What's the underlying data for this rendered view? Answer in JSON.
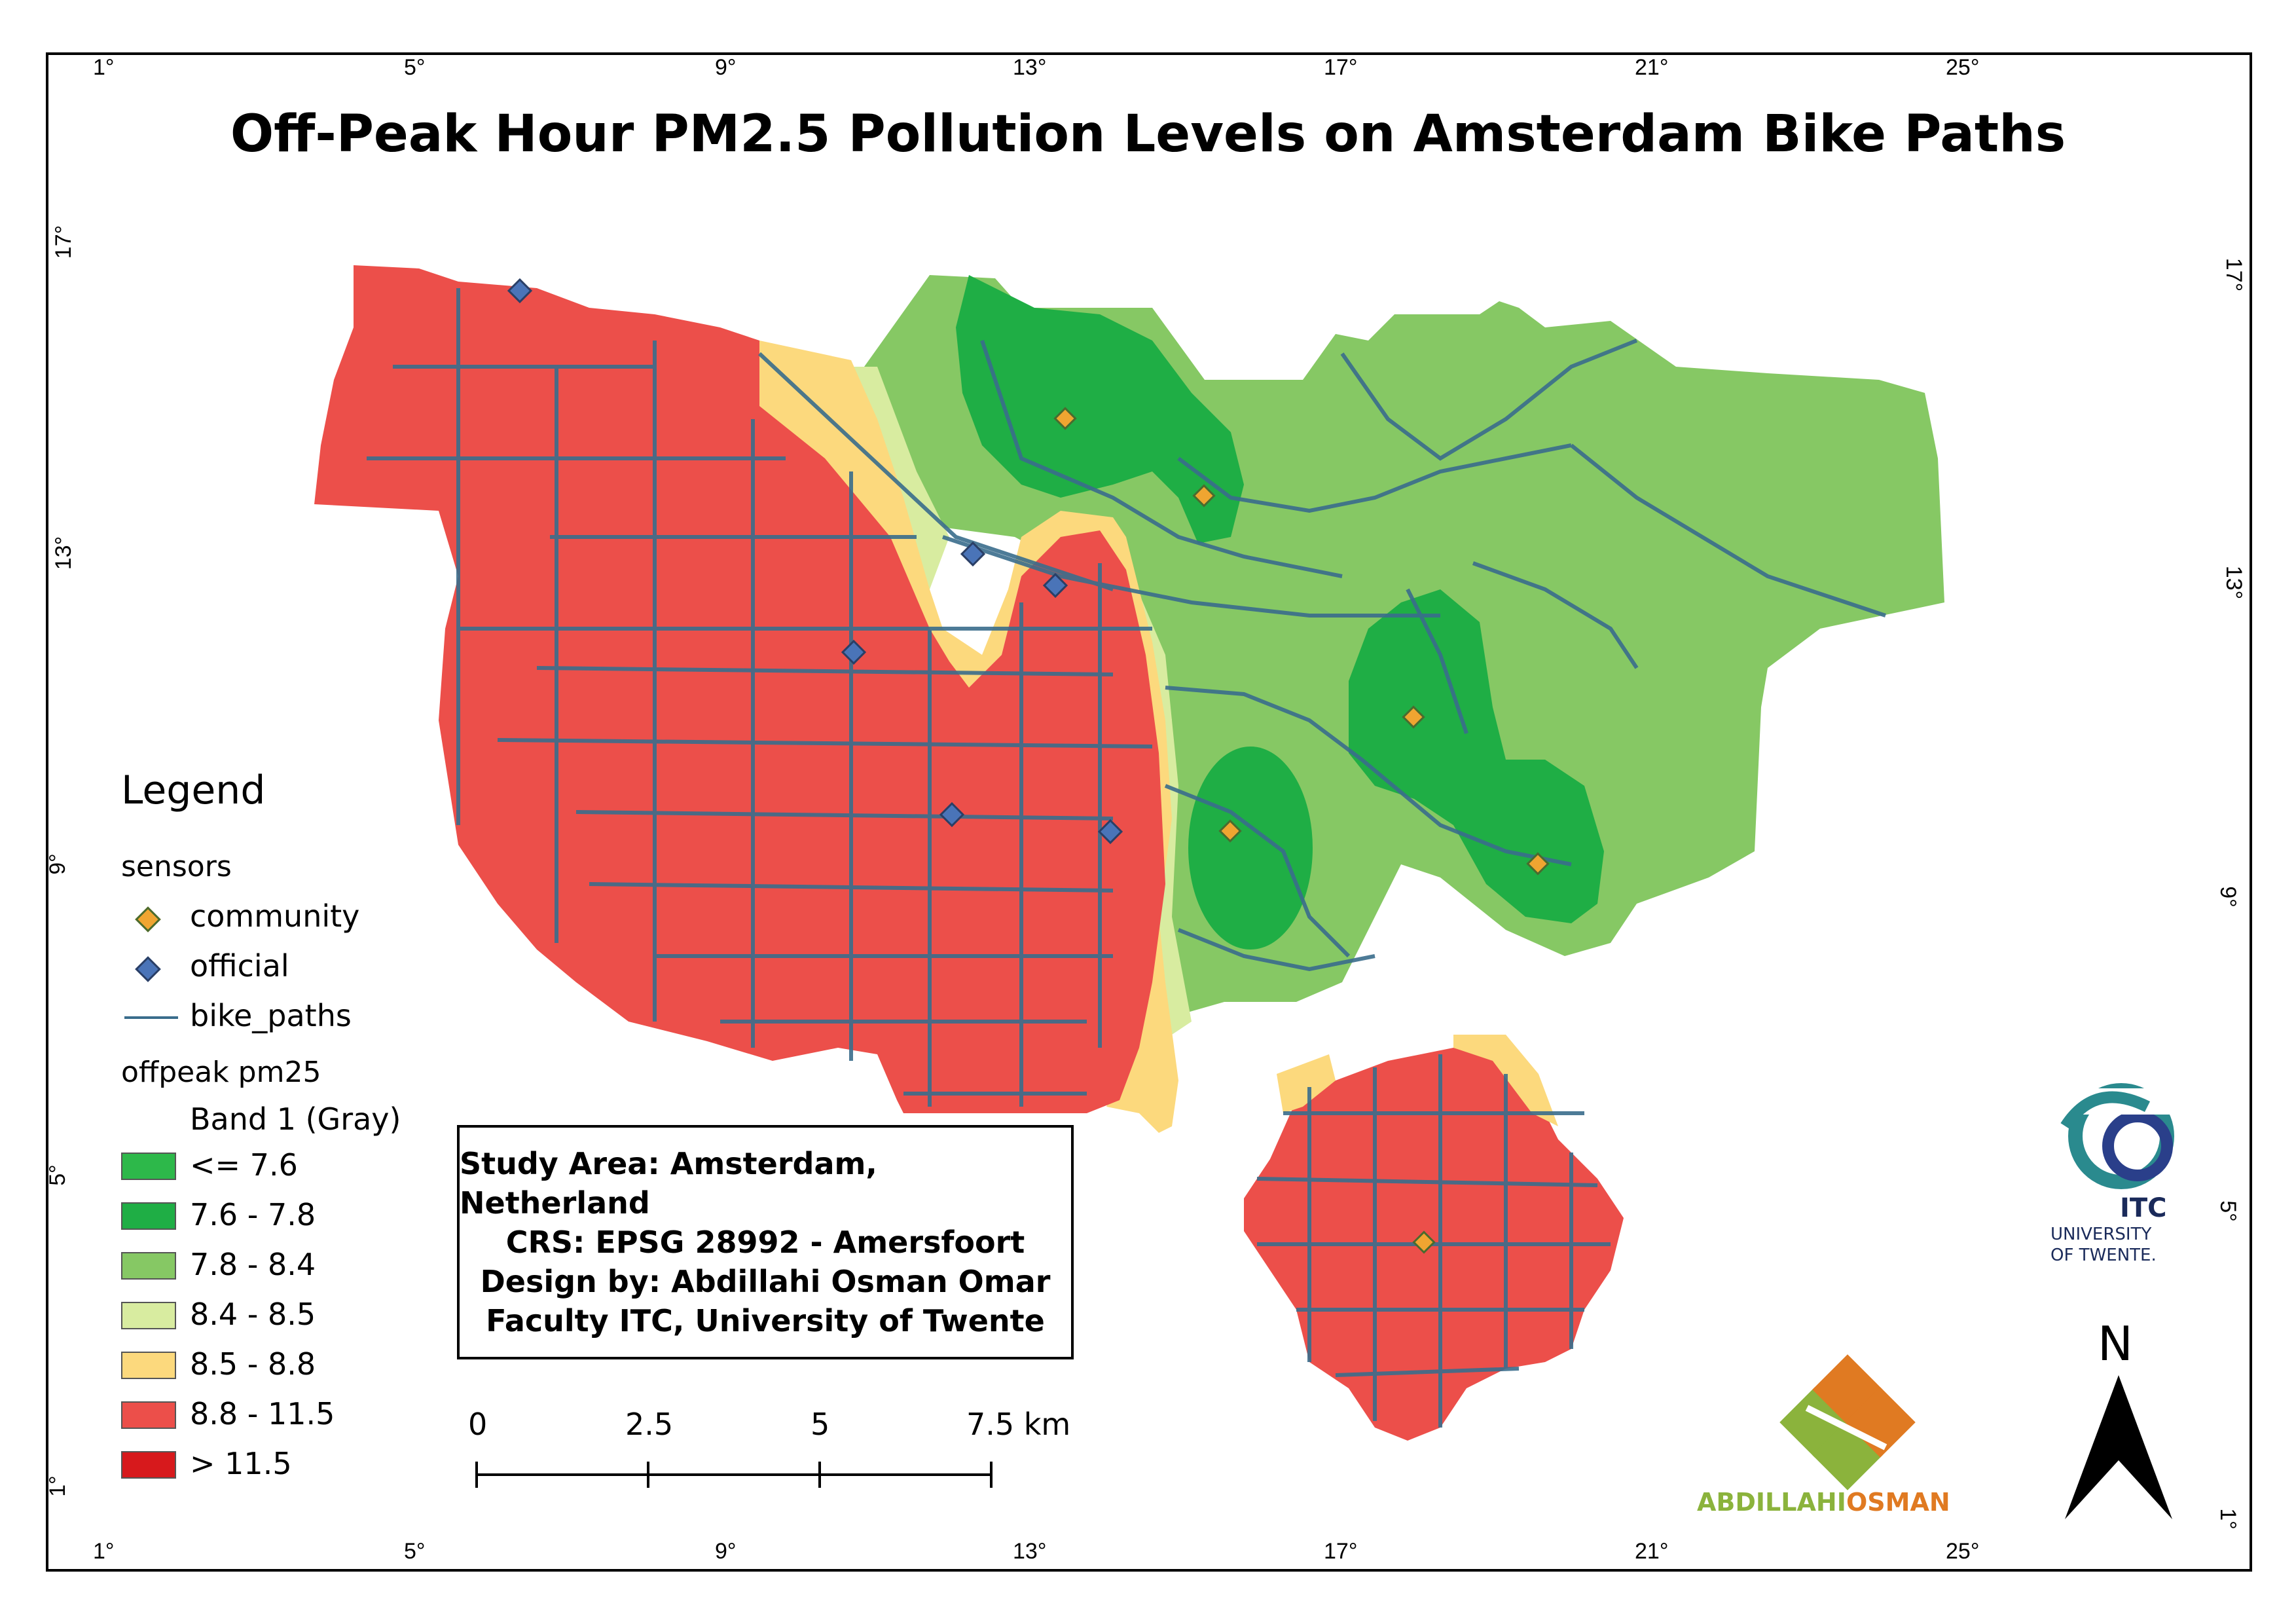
{
  "title": "Off-Peak Hour PM2.5 Pollution Levels on Amsterdam Bike Paths",
  "grid_labels": {
    "top": [
      "1°",
      "5°",
      "9°",
      "13°",
      "17°",
      "21°",
      "25°"
    ],
    "bottom": [
      "1°",
      "5°",
      "9°",
      "13°",
      "17°",
      "21°",
      "25°"
    ],
    "left": [
      "17°",
      "13°",
      "9°",
      "5°",
      "1°"
    ],
    "right": [
      "17°",
      "13°",
      "9°",
      "5°",
      "1°"
    ]
  },
  "legend": {
    "title": "Legend",
    "sensors_heading": "sensors",
    "community_label": "community",
    "official_label": "official",
    "bike_paths_label": "bike_paths",
    "raster_heading": "offpeak pm25",
    "band_label": "Band 1 (Gray)",
    "classes": [
      {
        "label": "<= 7.6",
        "color": "#2db84a"
      },
      {
        "label": "7.6 - 7.8",
        "color": "#1fae45"
      },
      {
        "label": "7.8 - 8.4",
        "color": "#86c864"
      },
      {
        "label": "8.4 - 8.5",
        "color": "#d8eca0"
      },
      {
        "label": "8.5 - 8.8",
        "color": "#fcd97d"
      },
      {
        "label": "8.8 - 11.5",
        "color": "#ec4f4a"
      },
      {
        "label": "> 11.5",
        "color": "#d7191c"
      }
    ],
    "community_color": "#f0a531",
    "official_color": "#4a74b8",
    "bike_path_color": "#3a6d8c"
  },
  "info_box": {
    "line1": "Study Area: Amsterdam, Netherland",
    "line2": "CRS: EPSG 28992 - Amersfoort",
    "line3": "Design by: Abdillahi Osman Omar",
    "line4": "Faculty ITC, University of Twente"
  },
  "scale_bar": {
    "labels": [
      "0",
      "2.5",
      "5",
      "7.5 km"
    ]
  },
  "north_arrow": {
    "label": "N"
  },
  "logos": {
    "itc_text": "ITC",
    "university_line1": "UNIVERSITY",
    "university_line2": "OF TWENTE.",
    "designer_first": "ABDILLAHI",
    "designer_last": "OSMAN"
  }
}
